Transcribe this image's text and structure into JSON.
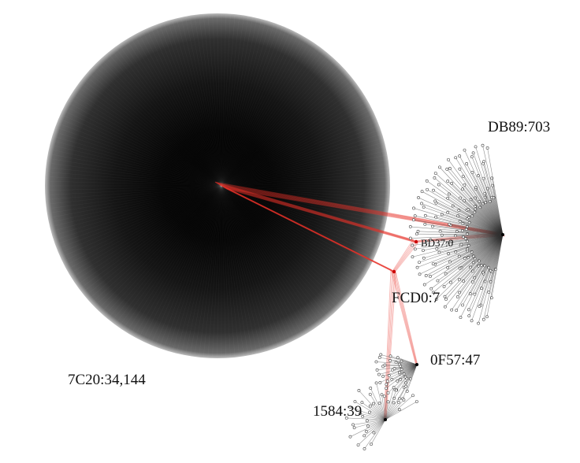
{
  "clusters": [
    {
      "id": "7C20",
      "label": "7C20:34,144",
      "size": 34144,
      "shape": "full-star"
    },
    {
      "id": "DB89",
      "label": "DB89:703",
      "size": 703,
      "shape": "fan"
    },
    {
      "id": "BD37",
      "label": "BD37:0",
      "size": 0,
      "shape": "hub"
    },
    {
      "id": "FCD0",
      "label": "FCD0:7",
      "size": 7,
      "shape": "hub"
    },
    {
      "id": "0F57",
      "label": "0F57:47",
      "size": 47,
      "shape": "fan"
    },
    {
      "id": "1584",
      "label": "1584:39",
      "size": 39,
      "shape": "fan"
    }
  ],
  "edges": [
    {
      "from": "7C20",
      "to": "DB89",
      "color": "#e8342a"
    },
    {
      "from": "7C20",
      "to": "BD37",
      "color": "#e8342a"
    },
    {
      "from": "7C20",
      "to": "FCD0",
      "color": "#e8342a"
    },
    {
      "from": "DB89",
      "to": "BD37",
      "color": "#e8342a"
    },
    {
      "from": "BD37",
      "to": "FCD0",
      "color": "#e8342a"
    },
    {
      "from": "FCD0",
      "to": "0F57",
      "color": "#e8342a"
    },
    {
      "from": "FCD0",
      "to": "1584",
      "color": "#e8342a"
    }
  ],
  "colors": {
    "hub_edges": "#e8342a",
    "leaf_edges": "#222222",
    "background": "#ffffff"
  }
}
